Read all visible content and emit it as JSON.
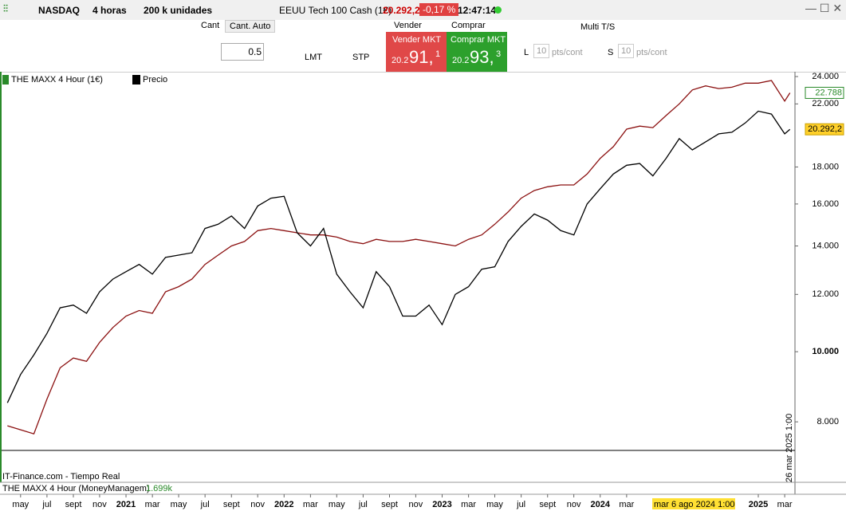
{
  "toolbar": {
    "symbol": "NASDAQ",
    "period": "4 horas",
    "units": "200 k unidades",
    "instrument": "EEUU Tech 100 Cash (1€)",
    "price": "20.292,2",
    "change": "-0,17 %",
    "time": "12:47:14"
  },
  "order_panel": {
    "qty_label": "Cant",
    "qty_auto": "Cant. Auto",
    "qty": "0.5",
    "lmt": "LMT",
    "stp": "STP",
    "sell_label": "Vender",
    "buy_label": "Comprar",
    "sell_button": "Vender MKT",
    "buy_button": "Comprar MKT",
    "sell_prefix": "20.2",
    "sell_big": "91,",
    "sell_small": "1",
    "buy_prefix": "20.2",
    "buy_big": "93,",
    "buy_small": "3",
    "multi": "Multi T/S",
    "l": "L",
    "s": "S",
    "pts_value": "10",
    "pts_unit": "pts/cont"
  },
  "chart_data": {
    "type": "line",
    "log_scale": true,
    "x": [
      2020.25,
      2020.333,
      2020.417,
      2020.5,
      2020.583,
      2020.667,
      2020.75,
      2020.833,
      2020.917,
      2021,
      2021.083,
      2021.167,
      2021.25,
      2021.333,
      2021.417,
      2021.5,
      2021.583,
      2021.667,
      2021.75,
      2021.833,
      2021.917,
      2022,
      2022.083,
      2022.167,
      2022.25,
      2022.333,
      2022.417,
      2022.5,
      2022.583,
      2022.667,
      2022.75,
      2022.833,
      2022.917,
      2023,
      2023.083,
      2023.167,
      2023.25,
      2023.333,
      2023.417,
      2023.5,
      2023.583,
      2023.667,
      2023.75,
      2023.833,
      2023.917,
      2024,
      2024.083,
      2024.167,
      2024.25,
      2024.333,
      2024.417,
      2024.5,
      2024.583,
      2024.667,
      2024.75,
      2024.833,
      2024.917,
      2025,
      2025.083,
      2025.167,
      2025.2
    ],
    "series": [
      {
        "name": "THE MAXX 4 Hour (1€)",
        "color": "#8b1010",
        "last_value_label": "22.788",
        "values": [
          7900,
          7800,
          7700,
          8600,
          9500,
          9800,
          9700,
          10300,
          10800,
          11200,
          11400,
          11300,
          12100,
          12300,
          12600,
          13200,
          13600,
          14000,
          14200,
          14700,
          14800,
          14700,
          14600,
          14500,
          14500,
          14400,
          14200,
          14100,
          14300,
          14200,
          14200,
          14300,
          14200,
          14100,
          14000,
          14300,
          14500,
          15000,
          15600,
          16300,
          16700,
          16900,
          17000,
          17000,
          17600,
          18500,
          19200,
          20300,
          20500,
          20400,
          21200,
          22000,
          23000,
          23300,
          23100,
          23200,
          23500,
          23500,
          23700,
          22200,
          22788
        ]
      },
      {
        "name": "Precio",
        "color": "#000000",
        "last_value_label": "20.292,2",
        "values": [
          8500,
          9300,
          9900,
          10600,
          11500,
          11600,
          11300,
          12100,
          12600,
          12900,
          13200,
          12800,
          13500,
          13600,
          13700,
          14800,
          15000,
          15400,
          14800,
          15900,
          16300,
          16400,
          14600,
          14000,
          14800,
          12800,
          12100,
          11500,
          12900,
          12300,
          11200,
          11200,
          11600,
          10900,
          12000,
          12300,
          13000,
          13100,
          14200,
          14900,
          15500,
          15200,
          14700,
          14500,
          16000,
          16800,
          17600,
          18100,
          18200,
          17500,
          18500,
          19700,
          19000,
          19500,
          20000,
          20100,
          20700,
          21500,
          21300,
          20000,
          20292.2
        ]
      }
    ],
    "xlim": [
      2020.218,
      2025.232
    ],
    "xticks": [
      {
        "value": 2020.333,
        "label": "may"
      },
      {
        "value": 2020.5,
        "label": "jul"
      },
      {
        "value": 2020.667,
        "label": "sept"
      },
      {
        "value": 2020.833,
        "label": "nov"
      },
      {
        "value": 2021,
        "label": "2021"
      },
      {
        "value": 2021.167,
        "label": "mar"
      },
      {
        "value": 2021.333,
        "label": "may"
      },
      {
        "value": 2021.5,
        "label": "jul"
      },
      {
        "value": 2021.667,
        "label": "sept"
      },
      {
        "value": 2021.833,
        "label": "nov"
      },
      {
        "value": 2022,
        "label": "2022"
      },
      {
        "value": 2022.167,
        "label": "mar"
      },
      {
        "value": 2022.333,
        "label": "may"
      },
      {
        "value": 2022.5,
        "label": "jul"
      },
      {
        "value": 2022.667,
        "label": "sept"
      },
      {
        "value": 2022.833,
        "label": "nov"
      },
      {
        "value": 2023,
        "label": "2023"
      },
      {
        "value": 2023.167,
        "label": "mar"
      },
      {
        "value": 2023.333,
        "label": "may"
      },
      {
        "value": 2023.5,
        "label": "jul"
      },
      {
        "value": 2023.667,
        "label": "sept"
      },
      {
        "value": 2023.833,
        "label": "nov"
      },
      {
        "value": 2024,
        "label": "2024"
      },
      {
        "value": 2024.167,
        "label": "mar"
      },
      {
        "value": 2025,
        "label": "2025"
      },
      {
        "value": 2025.167,
        "label": "mar"
      }
    ],
    "ylim": [
      6600,
      24370
    ],
    "yticks": [
      {
        "value": 8000,
        "label": "8.000"
      },
      {
        "value": 10000,
        "label": "10.000"
      },
      {
        "value": 12000,
        "label": "12.000"
      },
      {
        "value": 14000,
        "label": "14.000"
      },
      {
        "value": 16000,
        "label": "16.000"
      },
      {
        "value": 18000,
        "label": "18.000"
      },
      {
        "value": 22000,
        "label": "22.000"
      },
      {
        "value": 24000,
        "label": "24.000"
      }
    ],
    "source": "IT-Finance.com - Tiempo Real",
    "cursor_date": "26 mar 2025 1:00",
    "hover_date": "mar 6 ago 2024 1:00",
    "indicator": {
      "name": "THE MAXX 4 Hour (MoneyManagem)",
      "value": "1.699k"
    }
  }
}
